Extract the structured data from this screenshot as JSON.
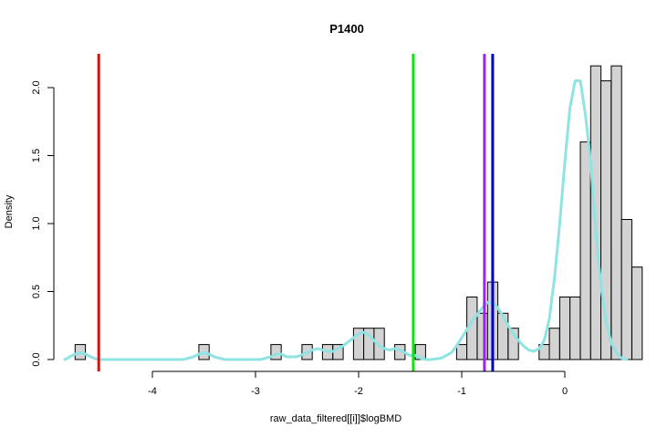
{
  "chart_data": {
    "type": "histogram",
    "title": "P1400",
    "xlabel": "raw_data_filtered[[i]]$logBMD",
    "ylabel": "Density",
    "xlim": [
      -4.9,
      0.6
    ],
    "ylim": [
      0,
      2.25
    ],
    "x_ticks": [
      -4,
      -3,
      -2,
      -1,
      0
    ],
    "x_tick_labels": [
      "-4",
      "-3",
      "-2",
      "-1",
      "0"
    ],
    "y_ticks": [
      0,
      0.5,
      1,
      1.5,
      2
    ],
    "y_tick_labels": [
      "0.0",
      "0.5",
      "1.0",
      "1.5",
      "2.0"
    ],
    "bin_width": 0.1,
    "bars": [
      {
        "x0": -4.75,
        "x1": -4.65,
        "density": 0.11
      },
      {
        "x0": -3.55,
        "x1": -3.45,
        "density": 0.11
      },
      {
        "x0": -2.85,
        "x1": -2.75,
        "density": 0.11
      },
      {
        "x0": -2.55,
        "x1": -2.45,
        "density": 0.11
      },
      {
        "x0": -2.35,
        "x1": -2.25,
        "density": 0.11
      },
      {
        "x0": -2.25,
        "x1": -2.15,
        "density": 0.11
      },
      {
        "x0": -2.05,
        "x1": -1.95,
        "density": 0.23
      },
      {
        "x0": -1.95,
        "x1": -1.85,
        "density": 0.23
      },
      {
        "x0": -1.85,
        "x1": -1.75,
        "density": 0.23
      },
      {
        "x0": -1.65,
        "x1": -1.55,
        "density": 0.11
      },
      {
        "x0": -1.45,
        "x1": -1.35,
        "density": 0.11
      },
      {
        "x0": -1.05,
        "x1": -0.95,
        "density": 0.11
      },
      {
        "x0": -0.95,
        "x1": -0.85,
        "density": 0.46
      },
      {
        "x0": -0.85,
        "x1": -0.75,
        "density": 0.34
      },
      {
        "x0": -0.75,
        "x1": -0.65,
        "density": 0.57
      },
      {
        "x0": -0.65,
        "x1": -0.55,
        "density": 0.34
      },
      {
        "x0": -0.55,
        "x1": -0.45,
        "density": 0.23
      },
      {
        "x0": -0.25,
        "x1": -0.15,
        "density": 0.11
      },
      {
        "x0": -0.15,
        "x1": -0.05,
        "density": 0.23
      },
      {
        "x0": -0.05,
        "x1": 0.05,
        "density": 0.46
      },
      {
        "x0": 0.05,
        "x1": 0.15,
        "density": 0.46
      },
      {
        "x0": 0.15,
        "x1": 0.25,
        "density": 1.6
      },
      {
        "x0": 0.25,
        "x1": 0.35,
        "density": 2.16
      },
      {
        "x0": 0.35,
        "x1": 0.45,
        "density": 2.05
      },
      {
        "x0": 0.45,
        "x1": 0.55,
        "density": 2.16
      },
      {
        "x0": 0.55,
        "x1": 0.65,
        "density": 1.03
      },
      {
        "x0": 0.65,
        "x1": 0.75,
        "density": 0.68
      }
    ],
    "density_curve": {
      "color": "#8fe3e3",
      "x": [
        -4.85,
        -4.8,
        -4.75,
        -4.7,
        -4.65,
        -4.6,
        -4.55,
        -4.5,
        -4.4,
        -4.2,
        -3.9,
        -3.7,
        -3.6,
        -3.55,
        -3.5,
        -3.45,
        -3.4,
        -3.3,
        -3.1,
        -2.95,
        -2.85,
        -2.8,
        -2.75,
        -2.7,
        -2.6,
        -2.5,
        -2.45,
        -2.4,
        -2.35,
        -2.3,
        -2.25,
        -2.2,
        -2.15,
        -2.1,
        -2.05,
        -2.0,
        -1.95,
        -1.9,
        -1.85,
        -1.8,
        -1.75,
        -1.7,
        -1.65,
        -1.6,
        -1.55,
        -1.5,
        -1.45,
        -1.4,
        -1.35,
        -1.3,
        -1.2,
        -1.1,
        -1.05,
        -1.0,
        -0.95,
        -0.9,
        -0.85,
        -0.8,
        -0.75,
        -0.7,
        -0.65,
        -0.6,
        -0.55,
        -0.5,
        -0.45,
        -0.4,
        -0.35,
        -0.3,
        -0.25,
        -0.2,
        -0.15,
        -0.1,
        -0.05,
        0.0,
        0.05,
        0.1,
        0.15,
        0.2,
        0.25,
        0.3,
        0.35,
        0.4,
        0.45,
        0.5,
        0.55,
        0.6
      ],
      "y": [
        0.0,
        0.02,
        0.04,
        0.05,
        0.04,
        0.02,
        0.005,
        0.0,
        0.0,
        0.0,
        0.0,
        0.0,
        0.02,
        0.04,
        0.05,
        0.04,
        0.02,
        0.0,
        0.0,
        0.0,
        0.02,
        0.04,
        0.04,
        0.02,
        0.02,
        0.05,
        0.07,
        0.08,
        0.07,
        0.06,
        0.06,
        0.08,
        0.1,
        0.13,
        0.16,
        0.19,
        0.2,
        0.18,
        0.14,
        0.1,
        0.08,
        0.07,
        0.08,
        0.07,
        0.05,
        0.03,
        0.03,
        0.01,
        0.0,
        0.0,
        0.01,
        0.05,
        0.1,
        0.16,
        0.22,
        0.28,
        0.33,
        0.38,
        0.42,
        0.42,
        0.38,
        0.32,
        0.25,
        0.19,
        0.14,
        0.1,
        0.07,
        0.06,
        0.08,
        0.14,
        0.3,
        0.6,
        1.0,
        1.45,
        1.85,
        2.05,
        2.05,
        1.8,
        1.45,
        0.95,
        0.55,
        0.28,
        0.12,
        0.05,
        0.01,
        0.0
      ]
    },
    "vertical_lines": [
      {
        "x": -4.52,
        "color": "#ff0000"
      },
      {
        "x": -1.47,
        "color": "#00ee00"
      },
      {
        "x": -0.78,
        "color": "#a020f0"
      },
      {
        "x": -0.7,
        "color": "#0000cc"
      }
    ],
    "bar_fill": "#d3d3d3",
    "bar_stroke": "#000000",
    "grid": false,
    "legend": "none"
  }
}
